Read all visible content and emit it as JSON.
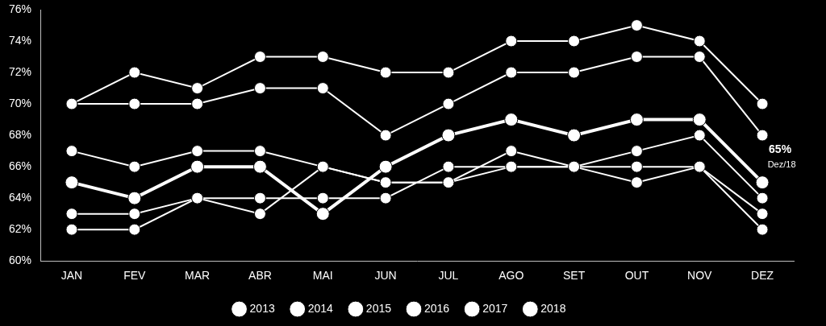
{
  "chart_data": {
    "type": "line",
    "categories": [
      "JAN",
      "FEV",
      "MAR",
      "ABR",
      "MAI",
      "JUN",
      "JUL",
      "AGO",
      "SET",
      "OUT",
      "NOV",
      "DEZ"
    ],
    "series": [
      {
        "name": "2013",
        "color": "#ffffff",
        "marker": "circle",
        "line_style": "solid",
        "values": [
          70,
          72,
          71,
          73,
          73,
          72,
          72,
          74,
          74,
          75,
          74,
          70
        ]
      },
      {
        "name": "2014",
        "color": "#ffffff",
        "marker": "circle",
        "line_style": "solid",
        "values": [
          70,
          70,
          70,
          71,
          71,
          68,
          70,
          72,
          72,
          73,
          73,
          68
        ]
      },
      {
        "name": "2015",
        "color": "#ffffff",
        "marker": "circle",
        "line_style": "solid",
        "values": [
          67,
          66,
          67,
          67,
          66,
          65,
          65,
          67,
          66,
          67,
          68,
          64
        ]
      },
      {
        "name": "2016",
        "color": "#ffffff",
        "marker": "circle",
        "line_style": "solid",
        "values": [
          62,
          62,
          64,
          63,
          66,
          65,
          65,
          66,
          66,
          65,
          66,
          62
        ]
      },
      {
        "name": "2017",
        "color": "#ffffff",
        "marker": "circle",
        "line_style": "solid",
        "values": [
          63,
          63,
          64,
          64,
          64,
          64,
          66,
          66,
          66,
          66,
          66,
          63
        ]
      },
      {
        "name": "2018",
        "color": "#ffffff",
        "marker": "circle",
        "line_style": "solid",
        "values": [
          65,
          64,
          66,
          66,
          63,
          66,
          68,
          69,
          68,
          69,
          69,
          65
        ]
      }
    ],
    "ylim": [
      60,
      76
    ],
    "yticks": [
      {
        "value": 60,
        "label": "60%"
      },
      {
        "value": 62,
        "label": "62%"
      },
      {
        "value": 64,
        "label": "64%"
      },
      {
        "value": 66,
        "label": "66%"
      },
      {
        "value": 68,
        "label": "68%"
      },
      {
        "value": 70,
        "label": "70%"
      },
      {
        "value": 72,
        "label": "72%"
      },
      {
        "value": 74,
        "label": "74%"
      },
      {
        "value": 76,
        "label": "76%"
      }
    ],
    "grid": false,
    "legend": "bottom",
    "annotations": [
      {
        "text": "65%",
        "subtext": "Dez/18",
        "category": "DEZ",
        "value": 65
      }
    ]
  }
}
